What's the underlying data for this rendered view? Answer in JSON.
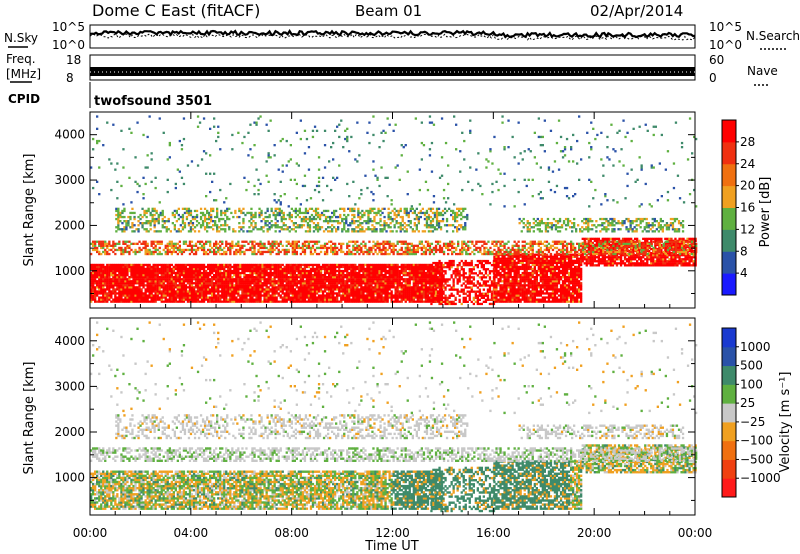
{
  "header": {
    "station": "Dome C East (fitACF)",
    "beam": "Beam 01",
    "date": "02/Apr/2014"
  },
  "labels": {
    "nsky": "N.Sky",
    "nsearch": "N.Search",
    "freq_top": "Freq.",
    "freq_unit": "[MHz]",
    "nave": "Nave",
    "cpid": "CPID",
    "cpid_value": "twofsound 3501"
  },
  "noise_axis": {
    "left_ticks": [
      "10^5",
      "10^0"
    ],
    "right_ticks": [
      "10^5",
      "10^0"
    ]
  },
  "freq_axis": {
    "left_ticks": [
      "18",
      "8"
    ],
    "right_ticks": [
      "60",
      "0"
    ]
  },
  "colors": {
    "power_scale": [
      "#1a1aff",
      "#2a52a8",
      "#3e8a6a",
      "#5fb040",
      "#f0a020",
      "#f07010",
      "#f03010",
      "#ff0000"
    ],
    "velocity_scale": [
      "#ff1a1a",
      "#f04010",
      "#f07010",
      "#f0a020",
      "#c8c8c8",
      "#5fb040",
      "#3e8a6a",
      "#2a52a8",
      "#1a3ad0"
    ]
  },
  "chart_data": [
    {
      "type": "heatmap",
      "panel": "power",
      "ylabel": "Slant Range [km]",
      "ylim": [
        180,
        4500
      ],
      "yticks": [
        "1000",
        "2000",
        "3000",
        "4000"
      ],
      "colorbar_label": "Power [dB]",
      "colorbar_ticks": [
        "4",
        "8",
        "12",
        "16",
        "20",
        "24",
        "28"
      ],
      "colorbar_range": [
        0,
        32
      ]
    },
    {
      "type": "heatmap",
      "panel": "velocity",
      "ylabel": "Slant Range [km]",
      "ylim": [
        180,
        4500
      ],
      "yticks": [
        "1000",
        "2000",
        "3000",
        "4000"
      ],
      "colorbar_label": "Velocity [m s⁻¹]",
      "colorbar_ticks": [
        "1000",
        "500",
        "100",
        "25",
        "−25",
        "−100",
        "−500",
        "−1000"
      ]
    }
  ],
  "x_axis": {
    "label": "Time UT",
    "ticks": [
      "00:00",
      "04:00",
      "08:00",
      "12:00",
      "16:00",
      "20:00",
      "00:00"
    ],
    "range_hours": [
      0,
      24
    ]
  }
}
